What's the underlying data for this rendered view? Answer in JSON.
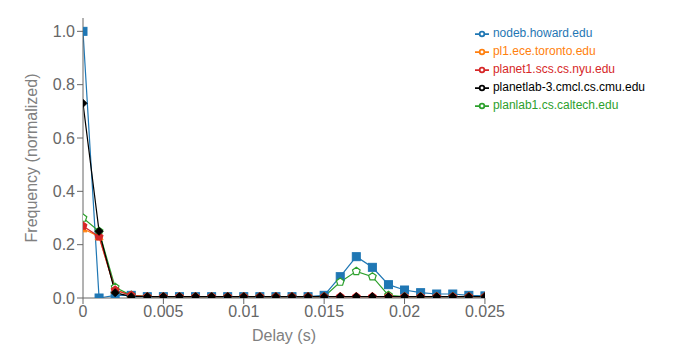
{
  "chart_data": {
    "type": "line",
    "xlabel": "Delay (s)",
    "ylabel": "Frequency (normalized)",
    "xlim": [
      0,
      0.025
    ],
    "ylim": [
      0,
      1.05
    ],
    "xticks": [
      0,
      0.005,
      0.01,
      0.015,
      0.02,
      0.025
    ],
    "yticks": [
      {
        "value": 0,
        "label": "0.0"
      },
      0.2,
      0.4,
      0.6,
      0.8,
      {
        "value": 1.0,
        "label": "1.0"
      }
    ],
    "grid": false,
    "legend": "upper right",
    "x": [
      0,
      0.001,
      0.002,
      0.003,
      0.004,
      0.005,
      0.006,
      0.007,
      0.008,
      0.009,
      0.01,
      0.011,
      0.012,
      0.013,
      0.014,
      0.015,
      0.016,
      0.017,
      0.018,
      0.019,
      0.02,
      0.021,
      0.022,
      0.023,
      0.024,
      0.025
    ],
    "series": [
      {
        "name": "nodeb.howard.edu",
        "color": "#1f77b4",
        "marker": "square",
        "values": [
          1.0,
          0.0,
          0.01,
          0.01,
          0.005,
          0.005,
          0.005,
          0.005,
          0.005,
          0.005,
          0.005,
          0.005,
          0.005,
          0.005,
          0.005,
          0.01,
          0.08,
          0.155,
          0.115,
          0.05,
          0.03,
          0.02,
          0.015,
          0.015,
          0.01,
          0.008
        ]
      },
      {
        "name": "pl1.ece.toronto.edu",
        "color": "#ff7f0e",
        "marker": "triangle",
        "values": [
          0.26,
          0.23,
          0.03,
          0.01,
          0.005,
          0.005,
          0.005,
          0.005,
          0.005,
          0.005,
          0.005,
          0.005,
          0.005,
          0.005,
          0.005,
          0.005,
          0.005,
          0.005,
          0.005,
          0.005,
          0.005,
          0.005,
          0.005,
          0.005,
          0.005,
          0.005
        ]
      },
      {
        "name": "planlab1.cs.caltech.edu",
        "color": "#2ca02c",
        "marker": "open-pentagon",
        "values": [
          0.3,
          0.25,
          0.04,
          0.01,
          0.005,
          0.005,
          0.005,
          0.005,
          0.005,
          0.005,
          0.005,
          0.005,
          0.005,
          0.005,
          0.005,
          0.005,
          0.06,
          0.1,
          0.08,
          0.01,
          0.005,
          0.005,
          0.005,
          0.005,
          0.005,
          0.005
        ]
      },
      {
        "name": "planet1.scs.cs.nyu.edu",
        "color": "#d62728",
        "marker": "pentagon",
        "values": [
          0.27,
          0.23,
          0.03,
          0.01,
          0.005,
          0.005,
          0.005,
          0.005,
          0.005,
          0.005,
          0.005,
          0.005,
          0.005,
          0.005,
          0.005,
          0.005,
          0.005,
          0.005,
          0.005,
          0.005,
          0.005,
          0.005,
          0.005,
          0.005,
          0.005,
          0.005
        ]
      },
      {
        "name": "planetlab-3.cmcl.cs.cmu.edu",
        "color": "#000000",
        "marker": "diamond",
        "values": [
          0.73,
          0.25,
          0.02,
          0.005,
          0.005,
          0.005,
          0.005,
          0.005,
          0.005,
          0.005,
          0.005,
          0.005,
          0.005,
          0.005,
          0.005,
          0.005,
          0.005,
          0.005,
          0.005,
          0.005,
          0.005,
          0.005,
          0.005,
          0.005,
          0.005,
          0.005
        ]
      }
    ]
  }
}
